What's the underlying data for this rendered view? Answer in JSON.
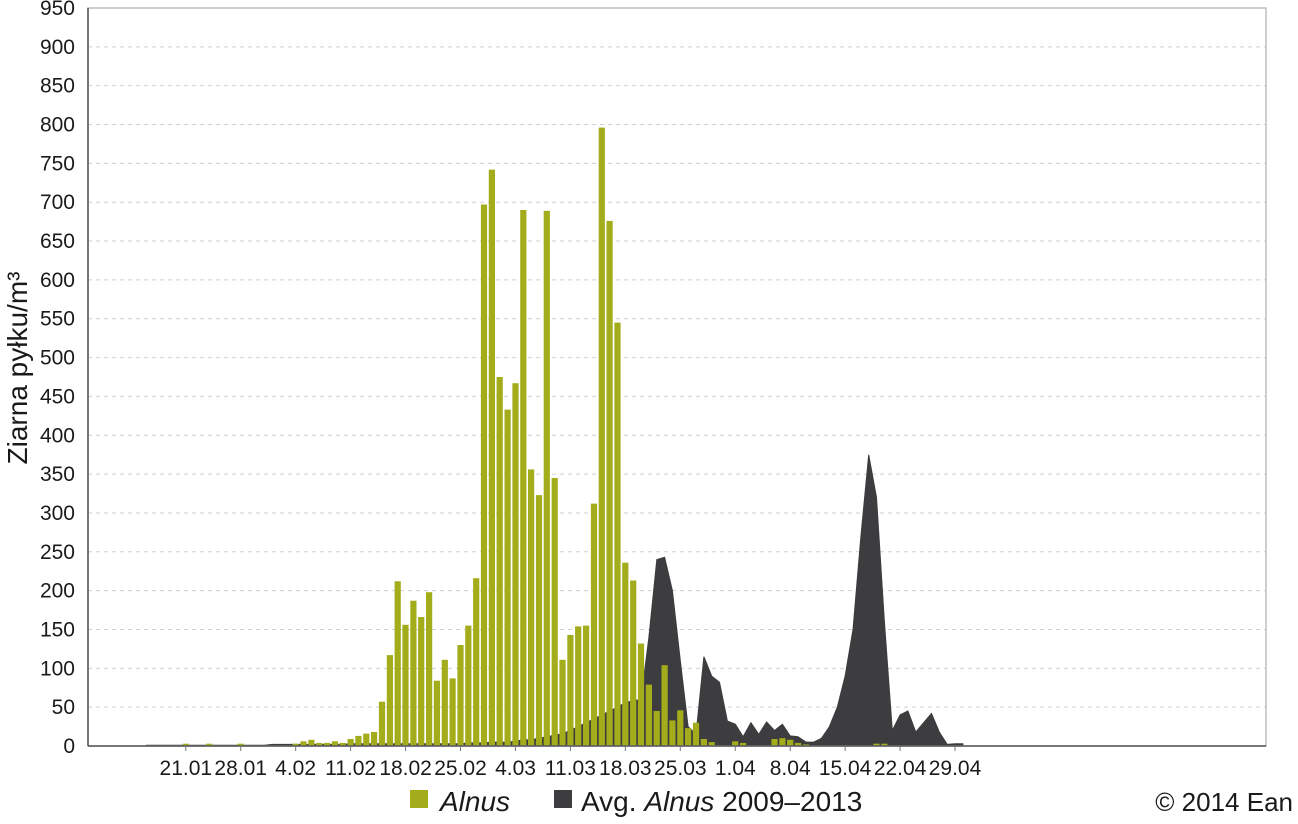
{
  "chart_data": {
    "type": "bar",
    "ylabel": "Ziarna pyłku/m³",
    "ylim": [
      0,
      950
    ],
    "yticks": [
      0,
      50,
      100,
      150,
      200,
      250,
      300,
      350,
      400,
      450,
      500,
      550,
      600,
      650,
      700,
      750,
      800,
      850,
      900,
      950
    ],
    "x_start": "2014-01-16",
    "xtick_labels": [
      "21.01",
      "28.01",
      "4.02",
      "11.02",
      "18.02",
      "25.02",
      "4.03",
      "11.03",
      "18.03",
      "25.03",
      "1.04",
      "8.04",
      "15.04",
      "22.04",
      "29.04"
    ],
    "xlabel": "",
    "grid": "dashed-horizontal",
    "colors": {
      "alnus": "#a3ad1c",
      "average": "#3d3d3f"
    },
    "series": [
      {
        "name": "Alnus",
        "kind": "bar",
        "x": [
          "2014-01-16",
          "2014-01-17",
          "2014-01-18",
          "2014-01-19",
          "2014-01-20",
          "2014-01-21",
          "2014-01-22",
          "2014-01-23",
          "2014-01-24",
          "2014-01-25",
          "2014-01-26",
          "2014-01-27",
          "2014-01-28",
          "2014-01-29",
          "2014-01-30",
          "2014-01-31",
          "2014-02-01",
          "2014-02-02",
          "2014-02-03",
          "2014-02-04",
          "2014-02-05",
          "2014-02-06",
          "2014-02-07",
          "2014-02-08",
          "2014-02-09",
          "2014-02-10",
          "2014-02-11",
          "2014-02-12",
          "2014-02-13",
          "2014-02-14",
          "2014-02-15",
          "2014-02-16",
          "2014-02-17",
          "2014-02-18",
          "2014-02-19",
          "2014-02-20",
          "2014-02-21",
          "2014-02-22",
          "2014-02-23",
          "2014-02-24",
          "2014-02-25",
          "2014-02-26",
          "2014-02-27",
          "2014-02-28",
          "2014-03-01",
          "2014-03-02",
          "2014-03-03",
          "2014-03-04",
          "2014-03-05",
          "2014-03-06",
          "2014-03-07",
          "2014-03-08",
          "2014-03-09",
          "2014-03-10",
          "2014-03-11",
          "2014-03-12",
          "2014-03-13",
          "2014-03-14",
          "2014-03-15",
          "2014-03-16",
          "2014-03-17",
          "2014-03-18",
          "2014-03-19",
          "2014-03-20",
          "2014-03-21",
          "2014-03-22",
          "2014-03-23",
          "2014-03-24",
          "2014-03-25",
          "2014-03-26",
          "2014-03-27",
          "2014-03-28",
          "2014-03-29",
          "2014-03-30",
          "2014-03-31",
          "2014-04-01",
          "2014-04-02",
          "2014-04-03",
          "2014-04-04",
          "2014-04-05",
          "2014-04-06",
          "2014-04-07",
          "2014-04-08",
          "2014-04-09",
          "2014-04-10",
          "2014-04-11",
          "2014-04-12",
          "2014-04-13",
          "2014-04-14",
          "2014-04-15",
          "2014-04-16",
          "2014-04-17",
          "2014-04-18",
          "2014-04-19",
          "2014-04-20",
          "2014-04-21",
          "2014-04-22",
          "2014-04-23",
          "2014-04-24",
          "2014-04-25",
          "2014-04-26",
          "2014-04-27",
          "2014-04-28",
          "2014-04-29",
          "2014-04-30"
        ],
        "values": [
          0,
          0,
          0,
          0,
          0,
          3,
          0,
          0,
          3,
          0,
          0,
          0,
          3,
          0,
          0,
          0,
          0,
          0,
          0,
          3,
          6,
          8,
          4,
          4,
          6,
          4,
          9,
          13,
          16,
          18,
          57,
          117,
          212,
          156,
          187,
          166,
          198,
          84,
          111,
          87,
          130,
          155,
          216,
          697,
          742,
          475,
          433,
          467,
          690,
          356,
          323,
          689,
          345,
          111,
          143,
          154,
          155,
          312,
          796,
          676,
          545,
          236,
          213,
          132,
          79,
          45,
          104,
          33,
          46,
          23,
          30,
          9,
          5,
          0,
          0,
          6,
          4,
          0,
          0,
          0,
          9,
          10,
          8,
          4,
          2,
          0,
          0,
          0,
          0,
          0,
          0,
          0,
          0,
          3,
          3,
          0,
          0,
          0,
          0,
          0,
          0,
          0,
          0,
          0,
          0
        ]
      },
      {
        "name": "Avg. Alnus 2009–2013",
        "kind": "area",
        "x": [
          "2014-01-16",
          "2014-01-17",
          "2014-01-18",
          "2014-01-19",
          "2014-01-20",
          "2014-01-21",
          "2014-01-22",
          "2014-01-23",
          "2014-01-24",
          "2014-01-25",
          "2014-01-26",
          "2014-01-27",
          "2014-01-28",
          "2014-01-29",
          "2014-01-30",
          "2014-01-31",
          "2014-02-01",
          "2014-02-02",
          "2014-02-03",
          "2014-02-04",
          "2014-02-05",
          "2014-02-06",
          "2014-02-07",
          "2014-02-08",
          "2014-02-09",
          "2014-02-10",
          "2014-02-11",
          "2014-02-12",
          "2014-02-13",
          "2014-02-14",
          "2014-02-15",
          "2014-02-16",
          "2014-02-17",
          "2014-02-18",
          "2014-02-19",
          "2014-02-20",
          "2014-02-21",
          "2014-02-22",
          "2014-02-23",
          "2014-02-24",
          "2014-02-25",
          "2014-02-26",
          "2014-02-27",
          "2014-02-28",
          "2014-03-01",
          "2014-03-02",
          "2014-03-03",
          "2014-03-04",
          "2014-03-05",
          "2014-03-06",
          "2014-03-07",
          "2014-03-08",
          "2014-03-09",
          "2014-03-10",
          "2014-03-11",
          "2014-03-12",
          "2014-03-13",
          "2014-03-14",
          "2014-03-15",
          "2014-03-16",
          "2014-03-17",
          "2014-03-18",
          "2014-03-19",
          "2014-03-20",
          "2014-03-21",
          "2014-03-22",
          "2014-03-23",
          "2014-03-24",
          "2014-03-25",
          "2014-03-26",
          "2014-03-27",
          "2014-03-28",
          "2014-03-29",
          "2014-03-30",
          "2014-03-31",
          "2014-04-01",
          "2014-04-02",
          "2014-04-03",
          "2014-04-04",
          "2014-04-05",
          "2014-04-06",
          "2014-04-07",
          "2014-04-08",
          "2014-04-09",
          "2014-04-10",
          "2014-04-11",
          "2014-04-12",
          "2014-04-13",
          "2014-04-14",
          "2014-04-15",
          "2014-04-16",
          "2014-04-17",
          "2014-04-18",
          "2014-04-19",
          "2014-04-20",
          "2014-04-21",
          "2014-04-22",
          "2014-04-23",
          "2014-04-24",
          "2014-04-25",
          "2014-04-26",
          "2014-04-27",
          "2014-04-28",
          "2014-04-29",
          "2014-04-30"
        ],
        "values": [
          1,
          1,
          1,
          1,
          1,
          1,
          1,
          1,
          1,
          1,
          1,
          1,
          1,
          1,
          1,
          1,
          2,
          2,
          2,
          2,
          2,
          2,
          2,
          2,
          2,
          2,
          3,
          3,
          3,
          3,
          3,
          3,
          3,
          3,
          3,
          3,
          3,
          3,
          3,
          3,
          3,
          4,
          4,
          4,
          5,
          5,
          5,
          6,
          8,
          8,
          10,
          12,
          14,
          16,
          20,
          25,
          30,
          35,
          40,
          45,
          50,
          56,
          58,
          60,
          140,
          240,
          243,
          200,
          110,
          25,
          15,
          115,
          90,
          82,
          32,
          28,
          12,
          30,
          15,
          31,
          20,
          28,
          13,
          12,
          5,
          5,
          10,
          25,
          50,
          90,
          150,
          270,
          375,
          320,
          160,
          20,
          40,
          45,
          18,
          30,
          42,
          18,
          2,
          3,
          3
        ]
      }
    ],
    "legend": {
      "placement": "bottom",
      "entries": [
        {
          "italic": "Alnus",
          "text": ""
        },
        {
          "prefix": "Avg. ",
          "italic": "Alnus",
          "text": " 2009–2013"
        }
      ]
    }
  },
  "copyright": "© 2014 Ean"
}
